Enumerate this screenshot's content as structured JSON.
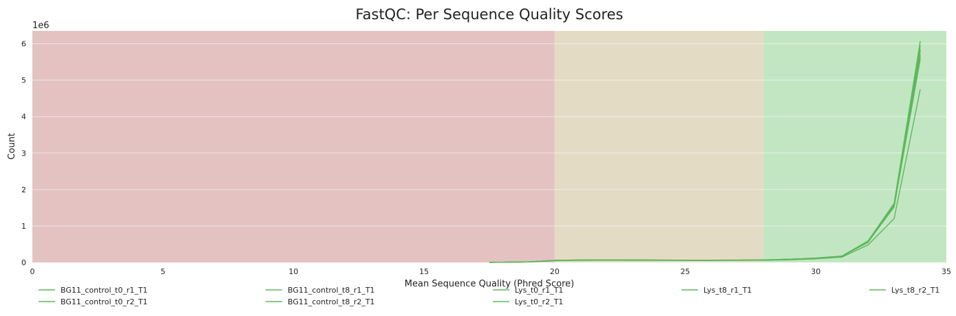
{
  "chart_data": {
    "type": "line",
    "title": "FastQC: Per Sequence Quality Scores",
    "xlabel": "Mean Sequence Quality (Phred Score)",
    "ylabel": "Count",
    "y_offset_label": "1e6",
    "xlim": [
      0,
      35
    ],
    "ylim": [
      0,
      6.35
    ],
    "x_ticks": [
      0,
      5,
      10,
      15,
      20,
      25,
      30,
      35
    ],
    "y_ticks": [
      0,
      1,
      2,
      3,
      4,
      5,
      6
    ],
    "grid": "horizontal",
    "legend_position": "bottom",
    "zones": [
      {
        "from": 0,
        "to": 20,
        "color": "#e4c2c2"
      },
      {
        "from": 20,
        "to": 28,
        "color": "#e4dbc4"
      },
      {
        "from": 28,
        "to": 35,
        "color": "#c3e6c2"
      }
    ],
    "x": [
      17.5,
      18,
      19,
      20,
      21,
      22,
      23,
      24,
      25,
      26,
      27,
      28,
      29,
      30,
      31,
      32,
      33,
      34
    ],
    "series": [
      {
        "name": "BG11_control_t0_r1_T1",
        "color": "#5cb85c",
        "values": [
          0.002,
          0.005,
          0.015,
          0.055,
          0.065,
          0.068,
          0.066,
          0.063,
          0.06,
          0.06,
          0.062,
          0.068,
          0.085,
          0.115,
          0.17,
          0.57,
          1.58,
          5.85
        ]
      },
      {
        "name": "BG11_control_t0_r2_T1",
        "color": "#5cb85c",
        "values": [
          0.002,
          0.005,
          0.015,
          0.058,
          0.068,
          0.07,
          0.068,
          0.065,
          0.062,
          0.062,
          0.064,
          0.07,
          0.088,
          0.118,
          0.175,
          0.59,
          1.62,
          6.07
        ]
      },
      {
        "name": "BG11_control_t8_r1_T1",
        "color": "#5cb85c",
        "values": [
          0.002,
          0.005,
          0.014,
          0.052,
          0.062,
          0.065,
          0.063,
          0.06,
          0.058,
          0.058,
          0.06,
          0.066,
          0.082,
          0.11,
          0.165,
          0.55,
          1.55,
          5.7
        ]
      },
      {
        "name": "BG11_control_t8_r2_T1",
        "color": "#5cb85c",
        "values": [
          0.002,
          0.005,
          0.015,
          0.056,
          0.066,
          0.069,
          0.067,
          0.064,
          0.061,
          0.061,
          0.063,
          0.069,
          0.086,
          0.116,
          0.172,
          0.58,
          1.6,
          5.95
        ]
      },
      {
        "name": "Lys_t0_r1_T1",
        "color": "#5cb85c",
        "values": [
          0.002,
          0.005,
          0.014,
          0.054,
          0.064,
          0.067,
          0.065,
          0.062,
          0.059,
          0.059,
          0.061,
          0.067,
          0.084,
          0.113,
          0.168,
          0.56,
          1.52,
          5.58
        ]
      },
      {
        "name": "Lys_t0_r2_T1",
        "color": "#5cb85c",
        "values": [
          0.002,
          0.005,
          0.015,
          0.057,
          0.067,
          0.07,
          0.068,
          0.065,
          0.062,
          0.062,
          0.064,
          0.07,
          0.087,
          0.117,
          0.173,
          0.585,
          1.6,
          5.8
        ]
      },
      {
        "name": "Lys_t8_r1_T1",
        "color": "#5cb85c",
        "values": [
          0.002,
          0.004,
          0.012,
          0.045,
          0.055,
          0.058,
          0.056,
          0.054,
          0.052,
          0.052,
          0.054,
          0.058,
          0.072,
          0.098,
          0.145,
          0.48,
          1.2,
          4.75
        ]
      },
      {
        "name": "Lys_t8_r2_T1",
        "color": "#5cb85c",
        "values": [
          0.002,
          0.005,
          0.015,
          0.055,
          0.065,
          0.068,
          0.066,
          0.063,
          0.06,
          0.06,
          0.062,
          0.068,
          0.085,
          0.114,
          0.17,
          0.575,
          1.58,
          5.65
        ]
      }
    ]
  }
}
